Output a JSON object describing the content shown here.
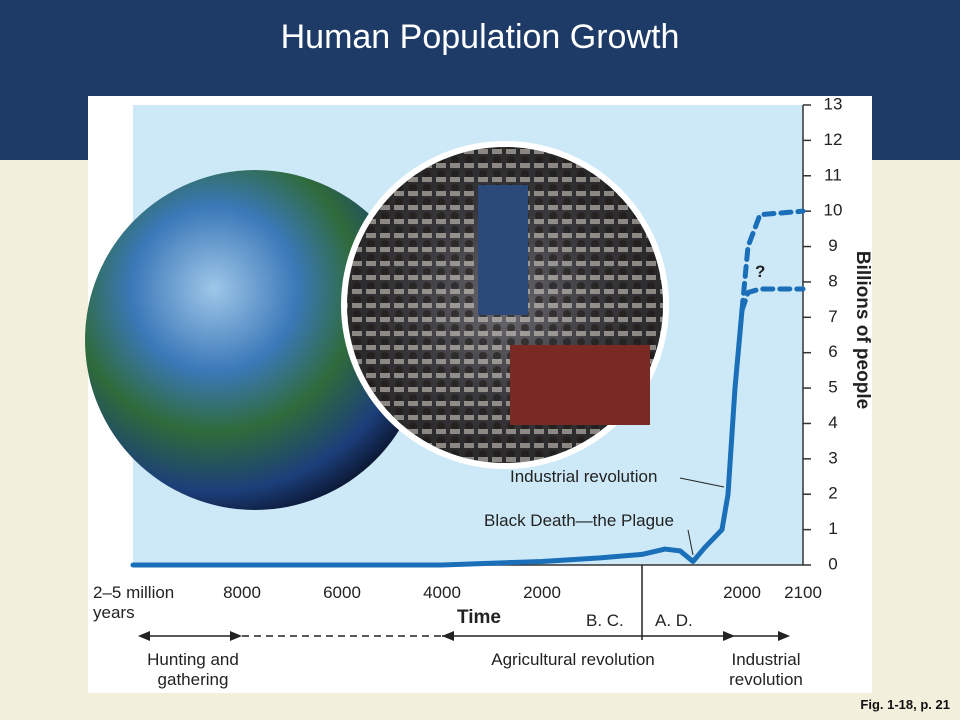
{
  "slide": {
    "title": "Human Population Growth",
    "caption": "Fig. 1-18, p. 21"
  },
  "chart_data": {
    "type": "line",
    "y_label": "Billions of people",
    "x_label": "Time",
    "ylim": [
      0,
      13
    ],
    "yticks": [
      0,
      1,
      2,
      3,
      4,
      5,
      6,
      7,
      8,
      9,
      10,
      11,
      12,
      13
    ],
    "categories": [
      "2–5 million years",
      "8000",
      "6000",
      "4000",
      "2000",
      null,
      null,
      null,
      null,
      null,
      null,
      null,
      null,
      null,
      "2000",
      null,
      null,
      "2100"
    ],
    "series": [
      {
        "color": "#1a6fb8",
        "style": "solid",
        "values": [
          0,
          0,
          0,
          0,
          0.1,
          0.2,
          0.3,
          0.45,
          0.4,
          0.1,
          0.5,
          1,
          2,
          5,
          7.2,
          null,
          null,
          null
        ]
      },
      {
        "color": "#1a6fb8",
        "style": "dashed",
        "values": [
          null,
          null,
          null,
          null,
          null,
          null,
          null,
          null,
          null,
          null,
          null,
          null,
          null,
          null,
          7.2,
          9,
          9.9,
          10
        ]
      },
      {
        "color": "#1a6fb8",
        "style": "dashed",
        "values": [
          null,
          null,
          null,
          null,
          null,
          null,
          null,
          null,
          null,
          null,
          null,
          null,
          null,
          null,
          7.2,
          7.7,
          7.8,
          7.8
        ]
      }
    ],
    "annotations": {
      "question": "?",
      "industrial": "Industrial revolution",
      "plague": "Black Death—the Plague",
      "bc": "B. C.",
      "ad": "A. D."
    },
    "eras": [
      "Hunting and gathering",
      "Agricultural revolution",
      "Industrial revolution"
    ]
  }
}
